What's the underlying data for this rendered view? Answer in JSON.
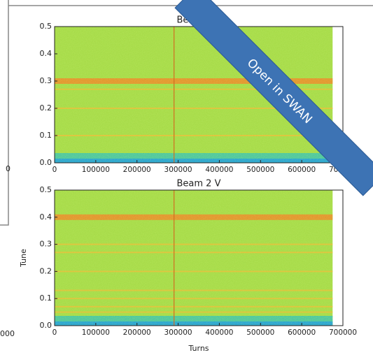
{
  "fragments": [
    "0",
    "000"
  ],
  "ribbon": "Open in SWAN",
  "chart_data": [
    {
      "type": "spectrogram",
      "title": "Beam 1 V",
      "xlim": [
        0,
        700000
      ],
      "xticks": [
        0,
        100000,
        200000,
        300000,
        400000,
        500000,
        600000,
        700000
      ],
      "ylim": [
        0,
        0.5
      ],
      "yticks": [
        {
          "value": 0,
          "label": "0.0"
        },
        0.1,
        0.2,
        0.3,
        0.4,
        0.5
      ],
      "x_extent": 675000,
      "event_x": 290000,
      "tune_lines": [
        0.3,
        0.27,
        0.2,
        0.1
      ]
    },
    {
      "type": "spectrogram",
      "title": "Beam 2 V",
      "xlabel": "Turns",
      "ylabel": "Tune",
      "xlim": [
        0,
        700000
      ],
      "xticks": [
        0,
        100000,
        200000,
        300000,
        400000,
        500000,
        600000,
        700000
      ],
      "ylim": [
        0,
        0.5
      ],
      "yticks": [
        {
          "value": 0,
          "label": "0.0"
        },
        0.1,
        0.2,
        0.3,
        0.4,
        0.5
      ],
      "x_extent": 675000,
      "event_x": 290000,
      "tune_lines": [
        0.4,
        0.3,
        0.27,
        0.2,
        0.13,
        0.1,
        0.07,
        0.05
      ]
    }
  ]
}
